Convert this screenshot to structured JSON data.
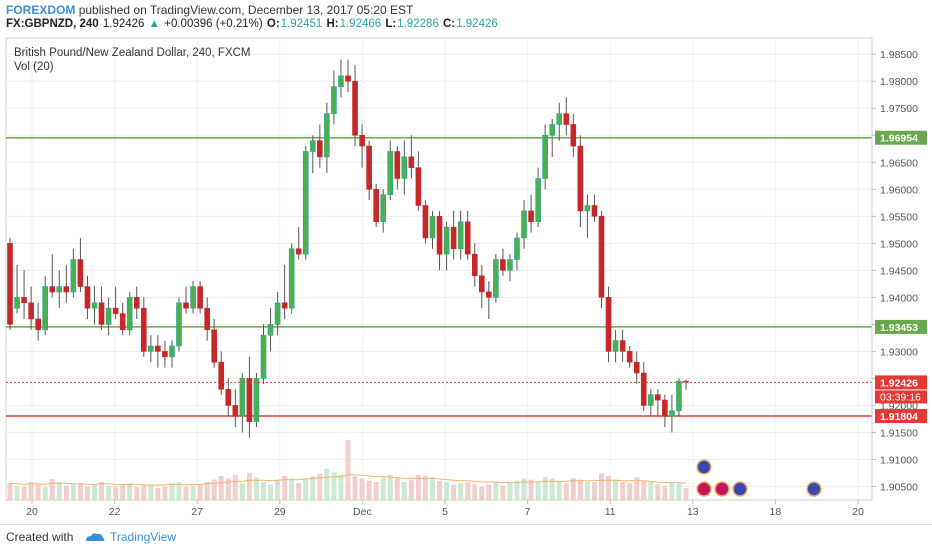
{
  "header": {
    "brand": "FOREXDOM",
    "published": "published on TradingView.com, December 13, 2017 05:20 EST"
  },
  "quote": {
    "symbol": "FX:GBPNZD, 240",
    "last": "1.92426",
    "arrow": "▲",
    "change": "+0.00396 (+0.21%)",
    "open_label": "O:",
    "open": "1.92451",
    "high_label": "H:",
    "high": "1.92466",
    "low_label": "L:",
    "low": "1.92286",
    "close_label": "C:",
    "close": "1.92426"
  },
  "footer": {
    "created_with": "Created with",
    "brand": "TradingView"
  },
  "colors": {
    "up": "#26a69a",
    "up_fill": "#4caf50",
    "down": "#c62828",
    "support_line": "#e53935",
    "green_line": "#6aa84f",
    "volume_up": "#cde8d5",
    "volume_down": "#f2cfcf",
    "volume_ma": "#f6b26b"
  },
  "chart_data": {
    "type": "candlestick",
    "title": "British Pound/New Zealand Dollar, 240, FXCM",
    "subtitle": "Vol (20)",
    "ylim": [
      1.9025,
      1.988
    ],
    "yticks": [
      "1.98500",
      "1.98000",
      "1.97500",
      "1.97000",
      "1.96500",
      "1.96000",
      "1.95500",
      "1.95000",
      "1.94500",
      "1.94000",
      "1.93500",
      "1.93000",
      "1.92500",
      "1.92000",
      "1.91500",
      "1.91000",
      "1.90500"
    ],
    "xticks": [
      "20",
      "22",
      "27",
      "29",
      "Dec",
      "5",
      "7",
      "11",
      "13",
      "18",
      "20"
    ],
    "horizontal_lines": [
      {
        "name": "resistance",
        "value": 1.96954,
        "label": "1.96954"
      },
      {
        "name": "support-upper",
        "value": 1.93453,
        "label": "1.93453"
      },
      {
        "name": "support-lower",
        "value": 1.91804,
        "label": "1.91804"
      }
    ],
    "last_price": {
      "value": 1.92426,
      "label": "1.92426",
      "countdown": "03:39:16"
    },
    "candles": [
      {
        "o": 1.95,
        "h": 1.951,
        "l": 1.934,
        "c": 1.935
      },
      {
        "o": 1.938,
        "h": 1.946,
        "l": 1.937,
        "c": 1.94
      },
      {
        "o": 1.94,
        "h": 1.945,
        "l": 1.936,
        "c": 1.939
      },
      {
        "o": 1.939,
        "h": 1.942,
        "l": 1.934,
        "c": 1.936
      },
      {
        "o": 1.936,
        "h": 1.939,
        "l": 1.932,
        "c": 1.934
      },
      {
        "o": 1.934,
        "h": 1.944,
        "l": 1.933,
        "c": 1.942
      },
      {
        "o": 1.942,
        "h": 1.948,
        "l": 1.94,
        "c": 1.941
      },
      {
        "o": 1.941,
        "h": 1.945,
        "l": 1.938,
        "c": 1.942
      },
      {
        "o": 1.942,
        "h": 1.946,
        "l": 1.939,
        "c": 1.941
      },
      {
        "o": 1.941,
        "h": 1.949,
        "l": 1.94,
        "c": 1.947
      },
      {
        "o": 1.947,
        "h": 1.951,
        "l": 1.941,
        "c": 1.942
      },
      {
        "o": 1.942,
        "h": 1.944,
        "l": 1.936,
        "c": 1.938
      },
      {
        "o": 1.938,
        "h": 1.942,
        "l": 1.935,
        "c": 1.939
      },
      {
        "o": 1.939,
        "h": 1.942,
        "l": 1.934,
        "c": 1.935
      },
      {
        "o": 1.935,
        "h": 1.94,
        "l": 1.933,
        "c": 1.938
      },
      {
        "o": 1.938,
        "h": 1.942,
        "l": 1.936,
        "c": 1.937
      },
      {
        "o": 1.937,
        "h": 1.939,
        "l": 1.933,
        "c": 1.934
      },
      {
        "o": 1.934,
        "h": 1.941,
        "l": 1.933,
        "c": 1.94
      },
      {
        "o": 1.94,
        "h": 1.942,
        "l": 1.936,
        "c": 1.938
      },
      {
        "o": 1.938,
        "h": 1.94,
        "l": 1.929,
        "c": 1.93
      },
      {
        "o": 1.93,
        "h": 1.933,
        "l": 1.928,
        "c": 1.931
      },
      {
        "o": 1.931,
        "h": 1.933,
        "l": 1.927,
        "c": 1.93
      },
      {
        "o": 1.93,
        "h": 1.932,
        "l": 1.927,
        "c": 1.929
      },
      {
        "o": 1.929,
        "h": 1.932,
        "l": 1.927,
        "c": 1.931
      },
      {
        "o": 1.931,
        "h": 1.94,
        "l": 1.93,
        "c": 1.939
      },
      {
        "o": 1.939,
        "h": 1.942,
        "l": 1.937,
        "c": 1.938
      },
      {
        "o": 1.938,
        "h": 1.943,
        "l": 1.937,
        "c": 1.942
      },
      {
        "o": 1.942,
        "h": 1.943,
        "l": 1.937,
        "c": 1.938
      },
      {
        "o": 1.938,
        "h": 1.94,
        "l": 1.932,
        "c": 1.934
      },
      {
        "o": 1.934,
        "h": 1.936,
        "l": 1.927,
        "c": 1.928
      },
      {
        "o": 1.928,
        "h": 1.93,
        "l": 1.922,
        "c": 1.923
      },
      {
        "o": 1.923,
        "h": 1.925,
        "l": 1.918,
        "c": 1.92
      },
      {
        "o": 1.92,
        "h": 1.923,
        "l": 1.916,
        "c": 1.918
      },
      {
        "o": 1.918,
        "h": 1.926,
        "l": 1.915,
        "c": 1.925
      },
      {
        "o": 1.925,
        "h": 1.929,
        "l": 1.914,
        "c": 1.917
      },
      {
        "o": 1.917,
        "h": 1.926,
        "l": 1.916,
        "c": 1.925
      },
      {
        "o": 1.925,
        "h": 1.935,
        "l": 1.924,
        "c": 1.933
      },
      {
        "o": 1.933,
        "h": 1.938,
        "l": 1.93,
        "c": 1.935
      },
      {
        "o": 1.935,
        "h": 1.941,
        "l": 1.933,
        "c": 1.939
      },
      {
        "o": 1.939,
        "h": 1.946,
        "l": 1.936,
        "c": 1.938
      },
      {
        "o": 1.938,
        "h": 1.95,
        "l": 1.937,
        "c": 1.949
      },
      {
        "o": 1.949,
        "h": 1.953,
        "l": 1.947,
        "c": 1.948
      },
      {
        "o": 1.948,
        "h": 1.968,
        "l": 1.947,
        "c": 1.967
      },
      {
        "o": 1.967,
        "h": 1.97,
        "l": 1.963,
        "c": 1.969
      },
      {
        "o": 1.969,
        "h": 1.972,
        "l": 1.964,
        "c": 1.966
      },
      {
        "o": 1.966,
        "h": 1.976,
        "l": 1.963,
        "c": 1.974
      },
      {
        "o": 1.974,
        "h": 1.982,
        "l": 1.972,
        "c": 1.979
      },
      {
        "o": 1.979,
        "h": 1.984,
        "l": 1.977,
        "c": 1.981
      },
      {
        "o": 1.981,
        "h": 1.984,
        "l": 1.978,
        "c": 1.98
      },
      {
        "o": 1.98,
        "h": 1.983,
        "l": 1.968,
        "c": 1.97
      },
      {
        "o": 1.97,
        "h": 1.972,
        "l": 1.964,
        "c": 1.968
      },
      {
        "o": 1.968,
        "h": 1.969,
        "l": 1.958,
        "c": 1.96
      },
      {
        "o": 1.96,
        "h": 1.961,
        "l": 1.953,
        "c": 1.954
      },
      {
        "o": 1.954,
        "h": 1.96,
        "l": 1.952,
        "c": 1.959
      },
      {
        "o": 1.959,
        "h": 1.969,
        "l": 1.958,
        "c": 1.967
      },
      {
        "o": 1.967,
        "h": 1.968,
        "l": 1.96,
        "c": 1.962
      },
      {
        "o": 1.962,
        "h": 1.969,
        "l": 1.959,
        "c": 1.966
      },
      {
        "o": 1.966,
        "h": 1.97,
        "l": 1.962,
        "c": 1.964
      },
      {
        "o": 1.964,
        "h": 1.967,
        "l": 1.956,
        "c": 1.957
      },
      {
        "o": 1.957,
        "h": 1.958,
        "l": 1.95,
        "c": 1.951
      },
      {
        "o": 1.951,
        "h": 1.956,
        "l": 1.949,
        "c": 1.955
      },
      {
        "o": 1.955,
        "h": 1.956,
        "l": 1.945,
        "c": 1.948
      },
      {
        "o": 1.948,
        "h": 1.954,
        "l": 1.945,
        "c": 1.953
      },
      {
        "o": 1.953,
        "h": 1.956,
        "l": 1.947,
        "c": 1.949
      },
      {
        "o": 1.949,
        "h": 1.956,
        "l": 1.947,
        "c": 1.954
      },
      {
        "o": 1.954,
        "h": 1.956,
        "l": 1.947,
        "c": 1.948
      },
      {
        "o": 1.948,
        "h": 1.95,
        "l": 1.942,
        "c": 1.944
      },
      {
        "o": 1.944,
        "h": 1.946,
        "l": 1.938,
        "c": 1.941
      },
      {
        "o": 1.941,
        "h": 1.943,
        "l": 1.936,
        "c": 1.94
      },
      {
        "o": 1.94,
        "h": 1.948,
        "l": 1.939,
        "c": 1.947
      },
      {
        "o": 1.947,
        "h": 1.949,
        "l": 1.944,
        "c": 1.945
      },
      {
        "o": 1.945,
        "h": 1.948,
        "l": 1.943,
        "c": 1.947
      },
      {
        "o": 1.947,
        "h": 1.952,
        "l": 1.945,
        "c": 1.951
      },
      {
        "o": 1.951,
        "h": 1.958,
        "l": 1.949,
        "c": 1.956
      },
      {
        "o": 1.956,
        "h": 1.959,
        "l": 1.952,
        "c": 1.954
      },
      {
        "o": 1.954,
        "h": 1.964,
        "l": 1.953,
        "c": 1.962
      },
      {
        "o": 1.962,
        "h": 1.972,
        "l": 1.96,
        "c": 1.97
      },
      {
        "o": 1.97,
        "h": 1.973,
        "l": 1.966,
        "c": 1.972
      },
      {
        "o": 1.972,
        "h": 1.976,
        "l": 1.969,
        "c": 1.974
      },
      {
        "o": 1.974,
        "h": 1.977,
        "l": 1.97,
        "c": 1.972
      },
      {
        "o": 1.972,
        "h": 1.974,
        "l": 1.966,
        "c": 1.968
      },
      {
        "o": 1.968,
        "h": 1.97,
        "l": 1.953,
        "c": 1.956
      },
      {
        "o": 1.956,
        "h": 1.959,
        "l": 1.951,
        "c": 1.957
      },
      {
        "o": 1.957,
        "h": 1.959,
        "l": 1.954,
        "c": 1.955
      },
      {
        "o": 1.955,
        "h": 1.956,
        "l": 1.938,
        "c": 1.94
      },
      {
        "o": 1.94,
        "h": 1.942,
        "l": 1.928,
        "c": 1.93
      },
      {
        "o": 1.93,
        "h": 1.934,
        "l": 1.928,
        "c": 1.932
      },
      {
        "o": 1.932,
        "h": 1.934,
        "l": 1.928,
        "c": 1.93
      },
      {
        "o": 1.93,
        "h": 1.931,
        "l": 1.927,
        "c": 1.928
      },
      {
        "o": 1.928,
        "h": 1.93,
        "l": 1.924,
        "c": 1.926
      },
      {
        "o": 1.926,
        "h": 1.928,
        "l": 1.919,
        "c": 1.92
      },
      {
        "o": 1.92,
        "h": 1.923,
        "l": 1.918,
        "c": 1.922
      },
      {
        "o": 1.922,
        "h": 1.923,
        "l": 1.918,
        "c": 1.921
      },
      {
        "o": 1.921,
        "h": 1.922,
        "l": 1.916,
        "c": 1.918
      },
      {
        "o": 1.918,
        "h": 1.922,
        "l": 1.915,
        "c": 1.919
      },
      {
        "o": 1.919,
        "h": 1.925,
        "l": 1.918,
        "c": 1.9245
      },
      {
        "o": 1.9245,
        "h": 1.9247,
        "l": 1.9229,
        "c": 1.9243
      }
    ],
    "volume_scale": 100,
    "volume": [
      28,
      24,
      22,
      30,
      26,
      22,
      35,
      30,
      24,
      26,
      28,
      22,
      26,
      30,
      24,
      22,
      26,
      28,
      22,
      24,
      26,
      20,
      22,
      28,
      30,
      22,
      24,
      26,
      30,
      34,
      40,
      36,
      42,
      28,
      45,
      38,
      30,
      26,
      34,
      40,
      36,
      28,
      36,
      40,
      44,
      52,
      46,
      42,
      100,
      40,
      36,
      32,
      30,
      38,
      42,
      36,
      30,
      34,
      42,
      40,
      38,
      32,
      30,
      26,
      28,
      30,
      26,
      22,
      26,
      30,
      24,
      28,
      32,
      36,
      34,
      30,
      38,
      36,
      32,
      28,
      36,
      34,
      30,
      30,
      44,
      40,
      34,
      30,
      28,
      38,
      32,
      30,
      26,
      24,
      30,
      28,
      20
    ],
    "volume_ma": [
      28,
      27,
      26,
      27,
      27,
      26,
      28,
      28,
      28,
      27,
      27,
      26,
      26,
      27,
      27,
      26,
      26,
      26,
      26,
      25,
      25,
      25,
      25,
      26,
      26,
      25,
      26,
      26,
      27,
      28,
      29,
      30,
      31,
      31,
      33,
      33,
      33,
      32,
      33,
      34,
      34,
      34,
      35,
      36,
      37,
      38,
      39,
      39,
      42,
      42,
      41,
      40,
      39,
      39,
      38,
      37,
      36,
      36,
      36,
      36,
      36,
      35,
      34,
      33,
      32,
      32,
      31,
      30,
      30,
      30,
      29,
      29,
      29,
      30,
      30,
      30,
      31,
      31,
      31,
      31,
      32,
      32,
      32,
      32,
      33,
      33,
      33,
      32,
      32,
      32,
      32,
      31,
      30,
      29,
      29,
      29,
      28
    ]
  }
}
